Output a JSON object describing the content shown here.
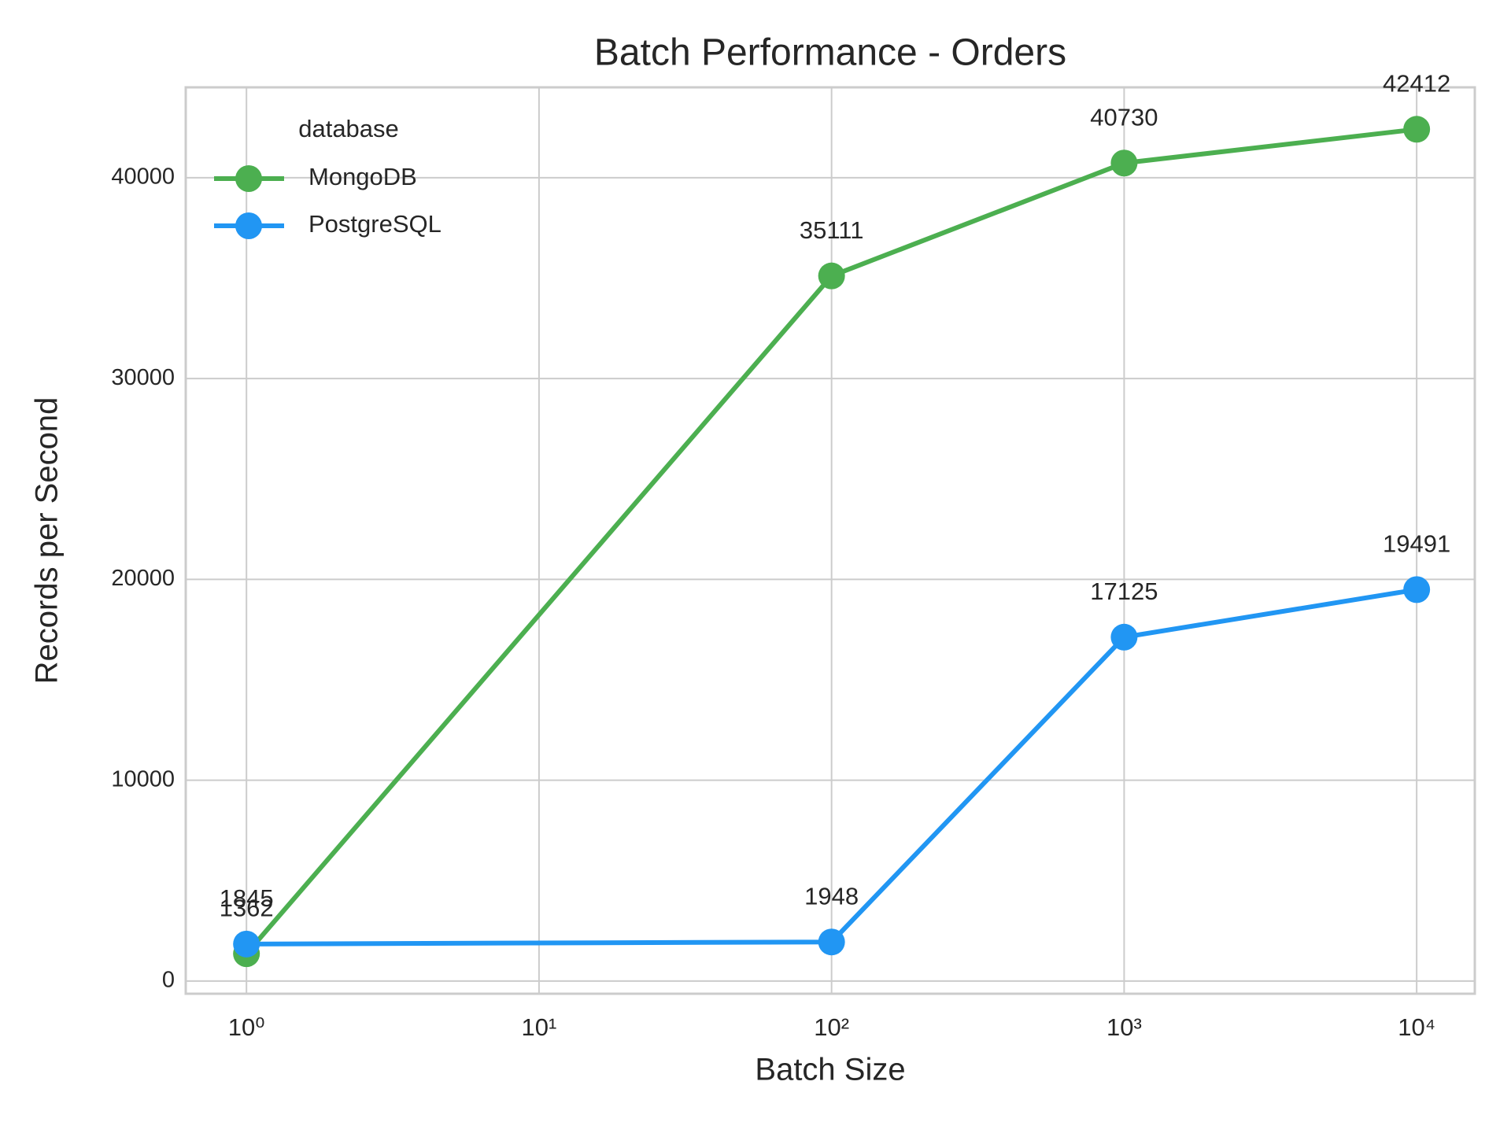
{
  "chart_data": {
    "type": "line",
    "title": "Batch Performance - Orders",
    "x_label": "Batch Size",
    "y_label": "Records per Second",
    "xscale": "log",
    "x": [
      1,
      100,
      1000,
      10000
    ],
    "series": [
      {
        "name": "MongoDB",
        "color": "#4caf50",
        "values": [
          1362,
          35111,
          40730,
          42412
        ]
      },
      {
        "name": "PostgreSQL",
        "color": "#2196f3",
        "values": [
          1845,
          1948,
          17125,
          19491
        ]
      }
    ],
    "xlim": [
      0.62,
      15800
    ],
    "xticks": [
      {
        "value": 1,
        "label": "10⁰"
      },
      {
        "value": 10,
        "label": "10¹"
      },
      {
        "value": 100,
        "label": "10²"
      },
      {
        "value": 1000,
        "label": "10³"
      },
      {
        "value": 10000,
        "label": "10⁴"
      }
    ],
    "ylim": [
      -630,
      44500
    ],
    "yticks": [
      0,
      10000,
      20000,
      30000,
      40000
    ],
    "grid": true,
    "legend_title": "database",
    "legend_position": "upper-left"
  }
}
